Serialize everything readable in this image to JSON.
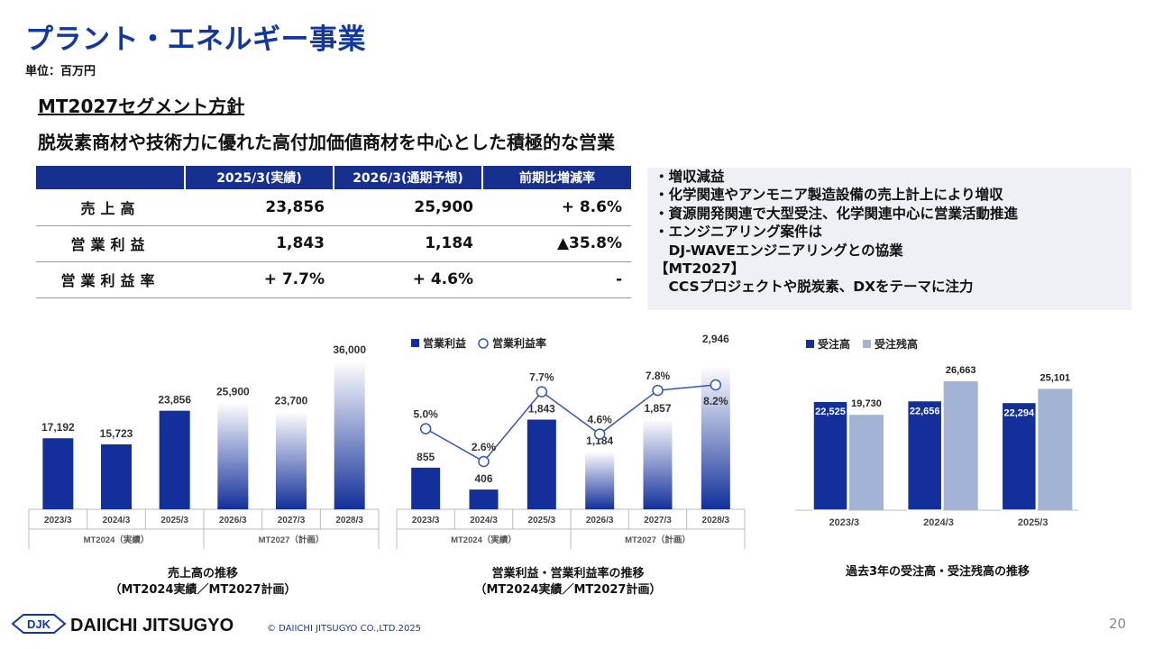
{
  "page": {
    "title": "プラント・エネルギー事業",
    "unit": "単位：百万円",
    "policy_heading": "MT2027セグメント方針",
    "policy_lead": "脱炭素商材や技術力に優れた高付加価値商材を中心とした積極的な営業",
    "page_number": "20",
    "copyright": "© DAIICHI JITSUGYO CO.,LTD.2025",
    "logo_mark": "DJK",
    "logo_text": "DAIICHI JITSUGYO"
  },
  "kpi_table": {
    "headers": [
      "",
      "2025/3(実績)",
      "2026/3(通期予想)",
      "前期比増減率"
    ],
    "rows": [
      {
        "label": "売上高",
        "actual": "23,856",
        "forecast": "25,900",
        "change": "+ 8.6%"
      },
      {
        "label": "営業利益",
        "actual": "1,843",
        "forecast": "1,184",
        "change": "▲35.8%"
      },
      {
        "label": "営業利益率",
        "actual": "+ 7.7%",
        "forecast": "+ 4.6%",
        "change": "-"
      }
    ]
  },
  "notes": [
    "・増収減益",
    "・化学関連やアンモニア製造設備の売上計上により増収",
    "・資源開発関連で大型受注、化学関連中心に営業活動推進",
    "・エンジニアリング案件は",
    "　DJ-WAVEエンジニアリングとの協業",
    "【MT2027】",
    "　CCSプロジェクトや脱炭素、DXをテーマに注力"
  ],
  "captions": {
    "sales": [
      "売上高の推移",
      "（MT2024実績／MT2027計画）"
    ],
    "profit": [
      "営業利益・営業利益率の推移",
      "（MT2024実績／MT2027計画）"
    ],
    "orders": [
      "過去3年の受注高・受注残高の推移"
    ]
  },
  "colors": {
    "navy": "#13309a",
    "light": "#a3b3d6",
    "accent": "#1238a0"
  },
  "chart_data": [
    {
      "type": "bar",
      "categories": [
        "2023/3",
        "2024/3",
        "2025/3",
        "2026/3",
        "2027/3",
        "2028/3"
      ],
      "values": [
        17192,
        15723,
        23856,
        25900,
        23700,
        36000
      ],
      "labels": [
        "17,192",
        "15,723",
        "23,856",
        "25,900",
        "23,700",
        "36,000"
      ],
      "groups": [
        {
          "label": "MT2024（実績）",
          "span": [
            0,
            2
          ]
        },
        {
          "label": "MT2027（計画）",
          "span": [
            3,
            5
          ]
        }
      ],
      "ylim": [
        0,
        36000
      ]
    },
    {
      "type": "bar",
      "categories": [
        "2023/3",
        "2024/3",
        "2025/3",
        "2026/3",
        "2027/3",
        "2028/3"
      ],
      "series": [
        {
          "name": "営業利益",
          "values": [
            855,
            406,
            1843,
            1184,
            1857,
            2946
          ],
          "labels": [
            "855",
            "406",
            "1,843",
            "1,184",
            "1,857",
            "2,946"
          ]
        },
        {
          "name": "営業利益率",
          "type": "line",
          "values": [
            5.0,
            2.6,
            7.7,
            4.6,
            7.8,
            8.2
          ],
          "labels": [
            "5.0%",
            "2.6%",
            "7.7%",
            "4.6%",
            "7.8%",
            "8.2%"
          ]
        }
      ],
      "groups": [
        {
          "label": "MT2024（実績）",
          "span": [
            0,
            2
          ]
        },
        {
          "label": "MT2027（計画）",
          "span": [
            3,
            5
          ]
        }
      ],
      "legend": "top-left"
    },
    {
      "type": "bar",
      "categories": [
        "2023/3",
        "2024/3",
        "2025/3"
      ],
      "series": [
        {
          "name": "受注高",
          "values": [
            22525,
            22656,
            22294
          ],
          "labels": [
            "22,525",
            "22,656",
            "22,294"
          ]
        },
        {
          "name": "受注残高",
          "values": [
            19730,
            26663,
            25101
          ],
          "labels": [
            "19,730",
            "26,663",
            "25,101"
          ]
        }
      ],
      "legend": "top-left"
    }
  ]
}
